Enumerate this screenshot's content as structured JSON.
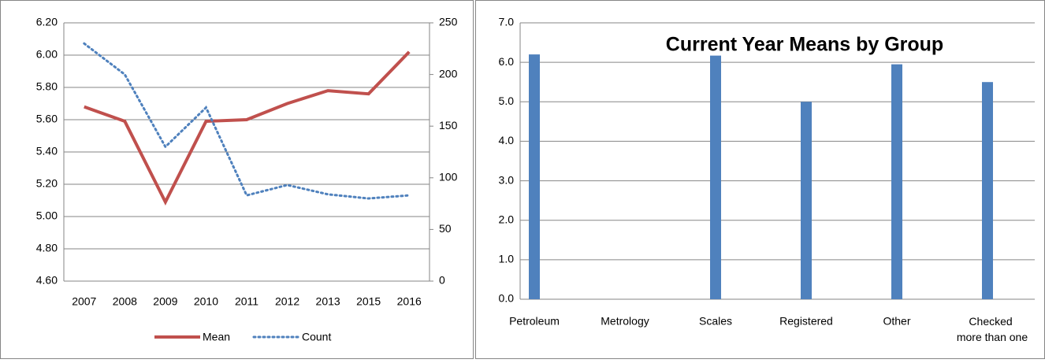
{
  "chart_data": [
    {
      "type": "line",
      "categories": [
        "2007",
        "2008",
        "2009",
        "2010",
        "2011",
        "2012",
        "2013",
        "2015",
        "2016"
      ],
      "series": [
        {
          "name": "Mean",
          "color": "#c0504d",
          "values": [
            5.68,
            5.59,
            5.09,
            5.59,
            5.6,
            5.7,
            5.78,
            5.76,
            6.02
          ]
        },
        {
          "name": "Count",
          "color": "#4f81bd",
          "axis": "y2",
          "dash": "dotted",
          "values": [
            230,
            200,
            130,
            168,
            83,
            93,
            84,
            80,
            83
          ]
        }
      ],
      "ylim": [
        4.6,
        6.2
      ],
      "yticks": [
        {
          "value": 4.6,
          "label": "4.60"
        },
        {
          "value": 4.8,
          "label": "4.80"
        },
        {
          "value": 5.0,
          "label": "5.00"
        },
        {
          "value": 5.2,
          "label": "5.20"
        },
        {
          "value": 5.4,
          "label": "5.40"
        },
        {
          "value": 5.6,
          "label": "5.60"
        },
        {
          "value": 5.8,
          "label": "5.80"
        },
        {
          "value": 6.0,
          "label": "6.00"
        },
        {
          "value": 6.2,
          "label": "6.20"
        }
      ],
      "y2lim": [
        0,
        250
      ],
      "y2ticks": [
        0,
        50,
        100,
        150,
        200,
        250
      ],
      "grid": true,
      "legend": "bottom"
    },
    {
      "type": "bar",
      "title": "Current Year Means by Group",
      "categories": [
        "Petroleum",
        "Metrology",
        "Scales",
        "Registered",
        "Other",
        "Checked more than one"
      ],
      "values": [
        6.2,
        null,
        6.17,
        5.0,
        5.95,
        5.5
      ],
      "color": "#4f81bd",
      "ylim": [
        0,
        7
      ],
      "yticks": [
        {
          "value": 0,
          "label": "0.0"
        },
        {
          "value": 1,
          "label": "1.0"
        },
        {
          "value": 2,
          "label": "2.0"
        },
        {
          "value": 3,
          "label": "3.0"
        },
        {
          "value": 4,
          "label": "4.0"
        },
        {
          "value": 5,
          "label": "5.0"
        },
        {
          "value": 6,
          "label": "6.0"
        },
        {
          "value": 7,
          "label": "7.0"
        }
      ],
      "grid": true
    }
  ]
}
